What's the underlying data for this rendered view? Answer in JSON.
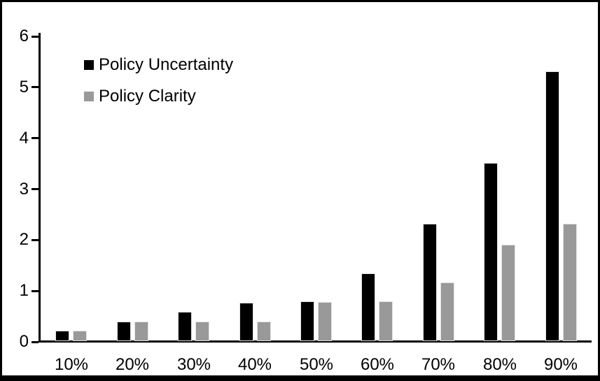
{
  "chart_data": {
    "type": "bar",
    "title": "",
    "xlabel": "",
    "ylabel": "",
    "categories": [
      "10%",
      "20%",
      "30%",
      "40%",
      "50%",
      "60%",
      "70%",
      "80%",
      "90%"
    ],
    "series": [
      {
        "name": "Policy Uncertainty",
        "color": "#000000",
        "values": [
          0.2,
          0.38,
          0.57,
          0.76,
          0.78,
          1.33,
          2.3,
          3.5,
          5.3
        ]
      },
      {
        "name": "Policy Clarity",
        "color": "#999999",
        "values": [
          0.2,
          0.38,
          0.38,
          0.38,
          0.77,
          0.78,
          1.15,
          1.9,
          2.3
        ]
      }
    ],
    "ylim": [
      0,
      6
    ],
    "yticks": [
      0,
      1,
      2,
      3,
      4,
      5,
      6
    ],
    "grid": false,
    "legend_position": "top-left-inside",
    "frame_color": "#000000",
    "background_color": "#ffffff"
  }
}
